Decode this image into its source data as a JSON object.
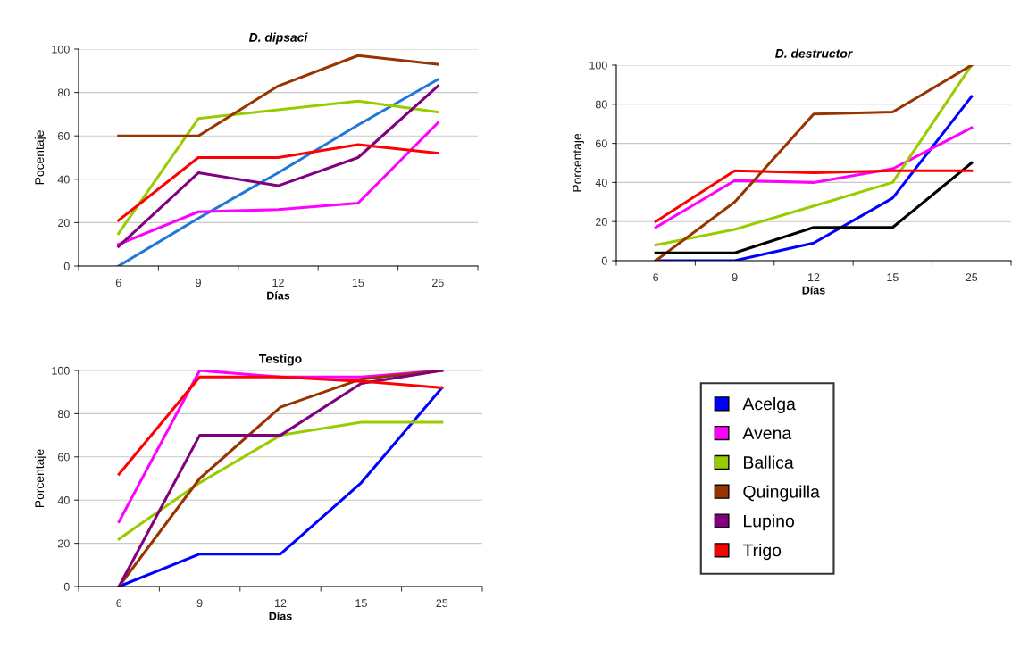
{
  "chart_data": [
    {
      "type": "line",
      "title": "D. dipsaci",
      "xlabel": "Días",
      "ylabel": "Pocentaje",
      "categories": [
        "6",
        "9",
        "12",
        "15",
        "25"
      ],
      "ylim": [
        0,
        100
      ],
      "yticks": [
        0,
        20,
        40,
        60,
        80,
        100
      ],
      "grid": "y",
      "series": [
        {
          "color": "#1f78d8",
          "values": [
            0,
            22,
            43,
            65,
            86
          ]
        },
        {
          "color": "#ff00ff",
          "values": [
            10,
            25,
            26,
            29,
            66
          ]
        },
        {
          "color": "#99cc00",
          "values": [
            15,
            68,
            72,
            76,
            71
          ]
        },
        {
          "color": "#993300",
          "values": [
            60,
            60,
            83,
            97,
            93
          ]
        },
        {
          "color": "#800080",
          "values": [
            9,
            43,
            37,
            50,
            83
          ]
        },
        {
          "color": "#ff0000",
          "values": [
            21,
            50,
            50,
            56,
            52
          ]
        }
      ]
    },
    {
      "type": "line",
      "title": "D. destructor",
      "xlabel": "Días",
      "ylabel": "Porcentaje",
      "categories": [
        "6",
        "9",
        "12",
        "15",
        "25"
      ],
      "ylim": [
        0,
        100
      ],
      "yticks": [
        0,
        20,
        40,
        60,
        80,
        100
      ],
      "grid": "y",
      "series": [
        {
          "color": "#0000ff",
          "values": [
            0,
            0,
            9,
            32,
            84
          ]
        },
        {
          "color": "#ff00ff",
          "values": [
            17,
            41,
            40,
            47,
            68
          ]
        },
        {
          "color": "#99cc00",
          "values": [
            8,
            16,
            28,
            40,
            100
          ]
        },
        {
          "color": "#993300",
          "values": [
            0,
            30,
            75,
            76,
            100
          ]
        },
        {
          "color": "#000000",
          "values": [
            4,
            4,
            17,
            17,
            50
          ]
        },
        {
          "color": "#ff0000",
          "values": [
            20,
            46,
            45,
            46,
            46
          ]
        }
      ]
    },
    {
      "type": "line",
      "title": "Testigo",
      "xlabel": "Días",
      "ylabel": "Porcentaje",
      "categories": [
        "6",
        "9",
        "12",
        "15",
        "25"
      ],
      "ylim": [
        0,
        100
      ],
      "yticks": [
        0,
        20,
        40,
        60,
        80,
        100
      ],
      "grid": "y",
      "legend": "right",
      "series": [
        {
          "name": "Acelga",
          "color": "#0000ff",
          "values": [
            0,
            15,
            15,
            48,
            92
          ]
        },
        {
          "name": "Avena",
          "color": "#ff00ff",
          "values": [
            30,
            100,
            97,
            97,
            100
          ]
        },
        {
          "name": "Ballica",
          "color": "#99cc00",
          "values": [
            22,
            48,
            70,
            76,
            76
          ]
        },
        {
          "name": "Quinguilla",
          "color": "#993300",
          "values": [
            0,
            50,
            83,
            96,
            100
          ]
        },
        {
          "name": "Lupino",
          "color": "#800080",
          "values": [
            0,
            70,
            70,
            94,
            100
          ]
        },
        {
          "name": "Trigo",
          "color": "#ff0000",
          "values": [
            52,
            97,
            97,
            95,
            92
          ]
        }
      ]
    }
  ]
}
